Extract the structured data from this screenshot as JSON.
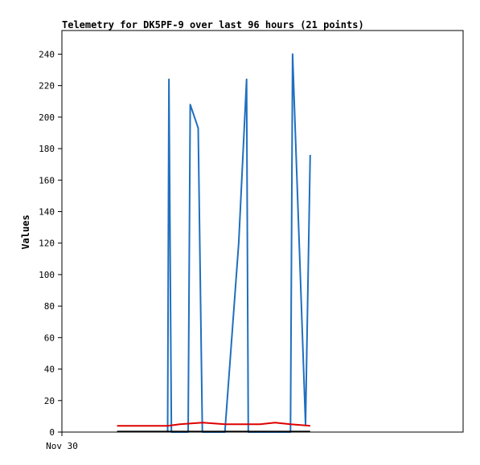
{
  "chart_data": {
    "type": "line",
    "title": "Telemetry for DK5PF-9 over last 96 hours (21 points)",
    "xlabel": "",
    "ylabel": "Values",
    "xlim": [
      0,
      96
    ],
    "ylim": [
      0,
      255
    ],
    "yticks": [
      0,
      20,
      40,
      60,
      80,
      100,
      120,
      140,
      160,
      180,
      200,
      220,
      240
    ],
    "xticks": [
      {
        "x": 0,
        "label": "Nov 30"
      }
    ],
    "grid": false,
    "legend": "none",
    "series": [
      {
        "color": "#1f6fbf",
        "points": [
          [
            25.3,
            0
          ],
          [
            25.6,
            224
          ],
          [
            26.2,
            0
          ],
          [
            30.2,
            0
          ],
          [
            30.7,
            208
          ],
          [
            32.6,
            193
          ],
          [
            33.6,
            0
          ],
          [
            39.0,
            0
          ],
          [
            42.3,
            120
          ],
          [
            44.2,
            224
          ],
          [
            44.6,
            0
          ],
          [
            54.7,
            0
          ],
          [
            55.2,
            240
          ],
          [
            58.3,
            5
          ],
          [
            59.4,
            176
          ]
        ]
      },
      {
        "color": "#dd0000",
        "points": [
          [
            13.2,
            4
          ],
          [
            25.3,
            4
          ],
          [
            28.2,
            5
          ],
          [
            33.6,
            6
          ],
          [
            39.0,
            5
          ],
          [
            47.4,
            5
          ],
          [
            51.0,
            6
          ],
          [
            54.7,
            5
          ],
          [
            59.4,
            4
          ]
        ]
      },
      {
        "color": "#000000",
        "points": [
          [
            13.2,
            0.3
          ],
          [
            59.4,
            0.3
          ]
        ]
      }
    ]
  }
}
